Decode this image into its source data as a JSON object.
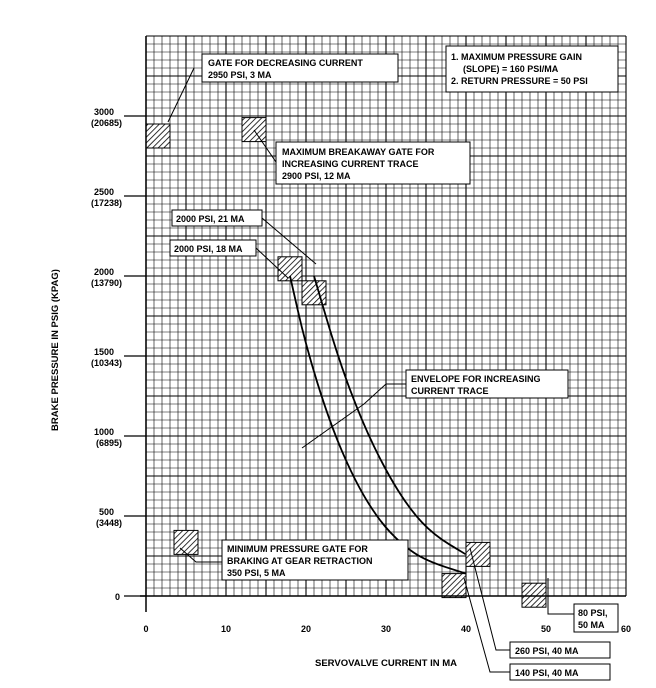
{
  "chart_data": {
    "type": "line",
    "title": "",
    "xlabel": "SERVOVALVE CURRENT IN MA",
    "ylabel": "BRAKE PRESSURE IN PSIG (KPAG)",
    "xlim": [
      0,
      60
    ],
    "ylim": [
      0,
      3500
    ],
    "x_ticks": [
      "0",
      "10",
      "20",
      "30",
      "40",
      "50",
      "60"
    ],
    "y_ticks": [
      {
        "value": 500,
        "psi": "500",
        "kpa": "(3448)"
      },
      {
        "value": 1000,
        "psi": "1000",
        "kpa": "(6895)"
      },
      {
        "value": 1500,
        "psi": "1500",
        "kpa": "(10343)"
      },
      {
        "value": 2000,
        "psi": "2000",
        "kpa": "(13790)"
      },
      {
        "value": 2500,
        "psi": "2500",
        "kpa": "(17238)"
      },
      {
        "value": 3000,
        "psi": "3000",
        "kpa": "(20685)"
      }
    ],
    "grid": true,
    "series": [
      {
        "name": "Envelope for increasing current trace (upper)",
        "x": [
          21,
          24,
          27,
          30,
          33,
          36,
          40
        ],
        "y": [
          2000,
          1490,
          1090,
          780,
          540,
          380,
          260
        ]
      },
      {
        "name": "Envelope for increasing current trace (lower)",
        "x": [
          18,
          20,
          23,
          26,
          29,
          32,
          35,
          40
        ],
        "y": [
          2000,
          1560,
          1080,
          730,
          480,
          320,
          220,
          140
        ]
      }
    ],
    "gates": [
      {
        "name": "Gate for decreasing current",
        "x": 3,
        "y": 2950
      },
      {
        "name": "Maximum breakaway gate",
        "x": 12,
        "y": 2900
      },
      {
        "name": "2000 PSI, 21 MA",
        "x": 21,
        "y": 2000
      },
      {
        "name": "2000 PSI, 18 MA",
        "x": 18,
        "y": 2000
      },
      {
        "name": "Minimum pressure gate",
        "x": 5,
        "y": 350
      },
      {
        "name": "260 PSI, 40 MA",
        "x": 40,
        "y": 260
      },
      {
        "name": "140 PSI, 40 MA",
        "x": 40,
        "y": 140
      },
      {
        "name": "80 PSI, 50 MA",
        "x": 50,
        "y": 80
      }
    ],
    "notes": [
      "1. MAXIMUM PRESSURE GAIN",
      "(SLOPE) = 160 PSI/MA",
      "2. RETURN PRESSURE = 50 PSI"
    ],
    "callouts": {
      "gate_decreasing": [
        "GATE FOR DECREASING CURRENT",
        "2950 PSI, 3 MA"
      ],
      "max_breakaway": [
        "MAXIMUM BREAKAWAY GATE FOR",
        "INCREASING CURRENT TRACE",
        "2900 PSI, 12 MA"
      ],
      "p2000_21": "2000 PSI, 21 MA",
      "p2000_18": "2000 PSI, 18 MA",
      "envelope": [
        "ENVELOPE FOR INCREASING",
        "CURRENT TRACE"
      ],
      "min_gate": [
        "MINIMUM PRESSURE GATE FOR",
        "BRAKING AT GEAR RETRACTION",
        "350 PSI, 5 MA"
      ],
      "p80_50": [
        "80 PSI,",
        "50 MA"
      ],
      "p260_40": "260 PSI, 40 MA",
      "p140_40": "140 PSI, 40 MA"
    }
  }
}
